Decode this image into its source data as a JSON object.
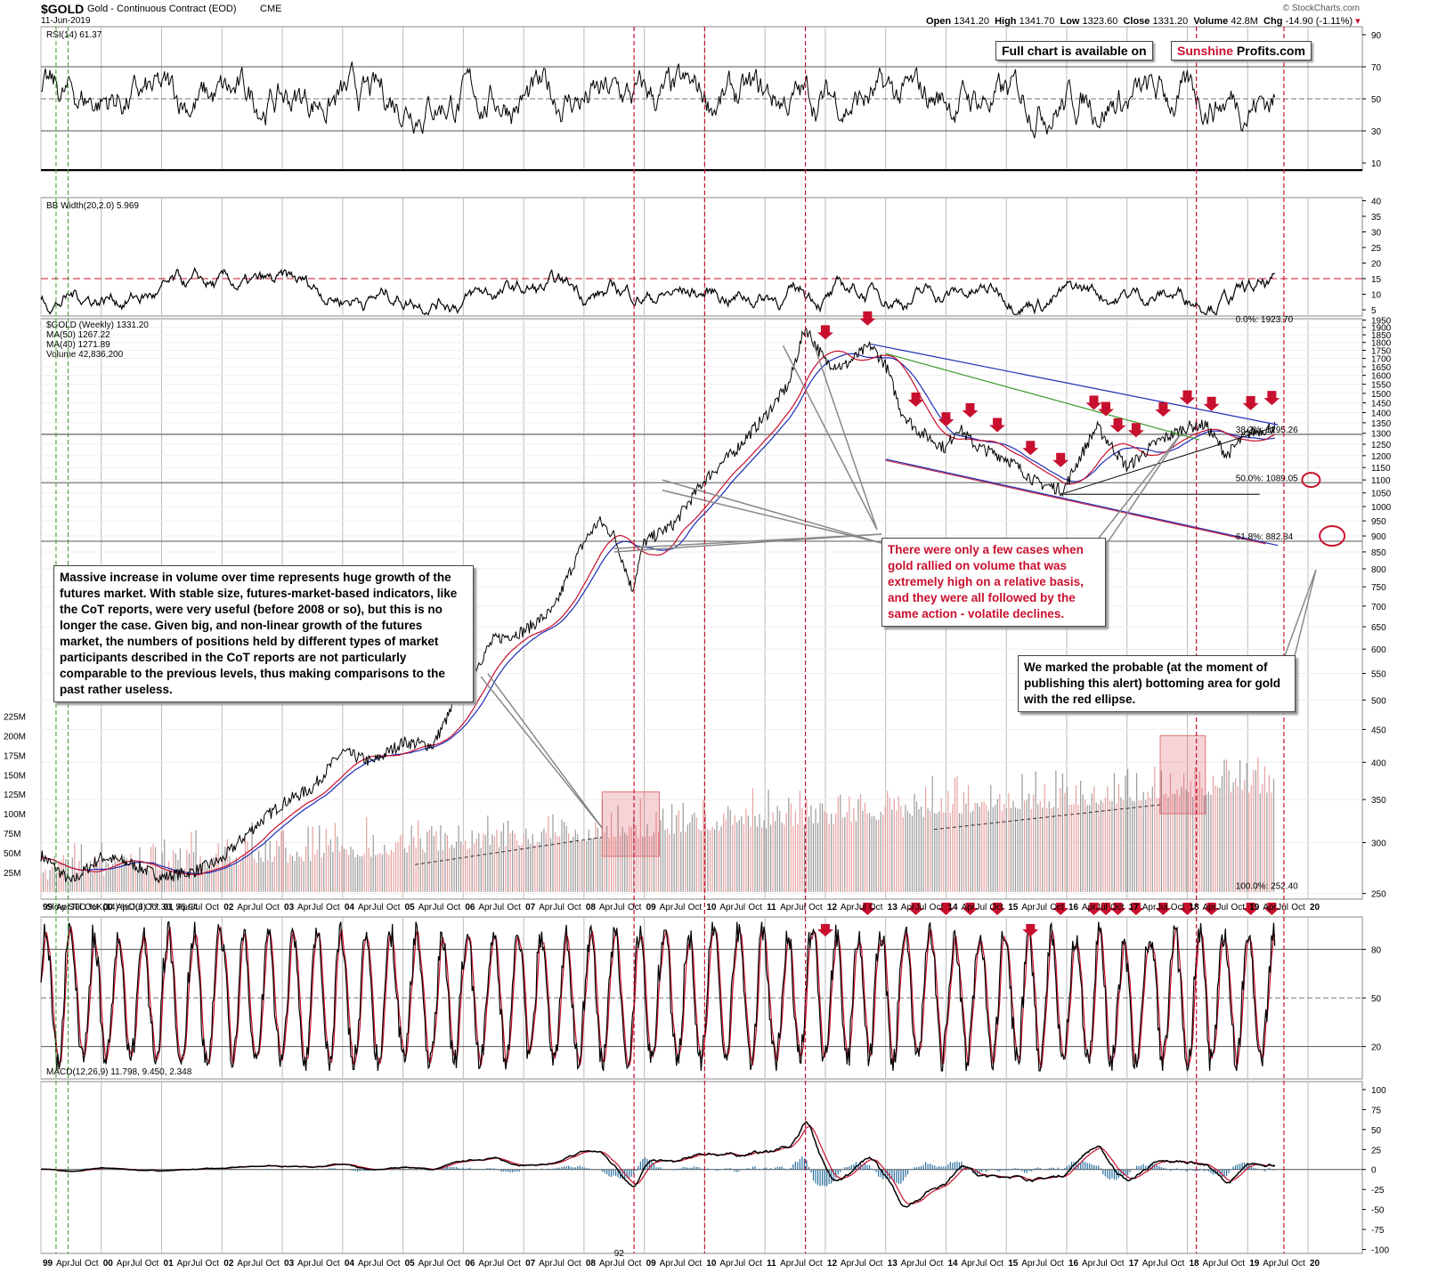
{
  "header": {
    "symbol": "$GOLD",
    "name": "Gold - Continuous Contract (EOD)",
    "exchange": "CME",
    "date": "11-Jun-2019",
    "open_label": "Open",
    "open": "1341.20",
    "high_label": "High",
    "high": "1341.70",
    "low_label": "Low",
    "low": "1323.60",
    "close_label": "Close",
    "close": "1331.20",
    "volume_label": "Volume",
    "volume": "42.8M",
    "chg_label": "Chg",
    "chg": "-14.90 (-1.11%)",
    "watermark": "© StockCharts.com"
  },
  "callouts": {
    "full_chart_text": "Full chart is available on",
    "brand_part1": "Sunshine",
    "brand_part2": "Profits.com",
    "volume_note": "Massive increase in volume over time represents huge growth of the futures market. With stable size, futures-market-based indicators, like the CoT reports, were very useful (before 2008 or so), but this is no longer the case. Given big, and non-linear growth of the futures market, the numbers of positions held by different types of market participants described in the CoT reports are not particularly comparable to the previous levels, thus making comparisons to the past rather useless.",
    "rally_note": "There were only a few cases when gold rallied on volume that was extremely high on a relative basis, and they were all followed by the same action - volatile declines.",
    "ellipse_note": "We marked the probable (at the moment of publishing this alert) bottoming area for gold with the red ellipse."
  },
  "chart_data": [
    {
      "type": "line",
      "panel": "rsi",
      "legend": "RSI(14) 61.37",
      "y_ticks": [
        10,
        30,
        50,
        70,
        90
      ],
      "ylim": [
        5,
        95
      ],
      "last_value": 61.37
    },
    {
      "type": "line",
      "panel": "bb_width",
      "legend": "BB Width(20,2.0) 5.969",
      "y_ticks": [
        5,
        10,
        15,
        20,
        25,
        30,
        35,
        40
      ],
      "ylim": [
        3,
        41
      ],
      "last_value": 5.969
    },
    {
      "type": "line",
      "panel": "price",
      "legend": [
        "$GOLD (Weekly) 1331.20",
        "MA(50) 1267.22",
        "MA(40) 1271.89",
        "Volume 42,836,200"
      ],
      "y_ticks_price": [
        250,
        300,
        350,
        400,
        450,
        500,
        550,
        600,
        650,
        700,
        750,
        800,
        850,
        900,
        950,
        1000,
        1050,
        1100,
        1150,
        1200,
        1250,
        1300,
        1350,
        1400,
        1450,
        1500,
        1550,
        1600,
        1650,
        1700,
        1750,
        1800,
        1850,
        1900,
        1950
      ],
      "y_ticks_volume": [
        "25M",
        "50M",
        "75M",
        "100M",
        "125M",
        "150M",
        "175M",
        "200M",
        "225M"
      ],
      "fib_labels": [
        "0.0%: 1923.70",
        "38.2%: 1295.26",
        "50.0%: 1089.05",
        "61.8%: 882.84",
        "100.0%: 252.40"
      ],
      "x": [
        1999.0,
        1999.5,
        2000.0,
        2000.5,
        2001.0,
        2001.5,
        2002.0,
        2002.5,
        2003.0,
        2003.5,
        2004.0,
        2004.5,
        2005.0,
        2005.5,
        2006.0,
        2006.5,
        2007.0,
        2007.5,
        2008.0,
        2008.25,
        2008.5,
        2008.8,
        2009.0,
        2009.5,
        2010.0,
        2010.5,
        2011.0,
        2011.4,
        2011.67,
        2012.0,
        2012.3,
        2012.75,
        2013.0,
        2013.25,
        2013.5,
        2014.0,
        2014.2,
        2014.5,
        2015.0,
        2015.5,
        2015.95,
        2016.5,
        2017.0,
        2017.5,
        2018.0,
        2018.3,
        2018.65,
        2019.0,
        2019.45
      ],
      "close": [
        287,
        260,
        285,
        278,
        265,
        270,
        282,
        315,
        345,
        365,
        415,
        400,
        430,
        425,
        520,
        620,
        640,
        690,
        880,
        950,
        900,
        740,
        880,
        940,
        1100,
        1220,
        1380,
        1550,
        1900,
        1680,
        1650,
        1780,
        1660,
        1410,
        1320,
        1230,
        1330,
        1240,
        1190,
        1090,
        1060,
        1330,
        1150,
        1260,
        1330,
        1340,
        1200,
        1300,
        1331
      ],
      "ellipse_targets": [
        1100,
        900
      ]
    },
    {
      "type": "line",
      "panel": "slow_sto",
      "legend": "Slow STO %K(14) %D(3) 77.30, 55.94",
      "series": [
        {
          "name": "%K(14)",
          "last_value": 77.3
        },
        {
          "name": "%D(3)",
          "last_value": 55.94
        }
      ],
      "y_ticks": [
        20,
        50,
        80
      ],
      "ylim": [
        0,
        100
      ]
    },
    {
      "type": "line",
      "panel": "macd",
      "legend": "MACD(12,26,9) 11.798, 9.450, 2.348",
      "series": [
        {
          "name": "MACD",
          "last_value": 11.798
        },
        {
          "name": "Signal",
          "last_value": 9.45
        },
        {
          "name": "Histogram",
          "last_value": 2.348
        }
      ],
      "y_ticks": [
        -100,
        -75,
        -50,
        -25,
        0,
        25,
        50,
        75,
        100
      ],
      "ylim": [
        -105,
        110
      ]
    }
  ],
  "x_axis": {
    "year_labels": [
      "99",
      "00",
      "01",
      "02",
      "03",
      "04",
      "05",
      "06",
      "07",
      "08",
      "09",
      "10",
      "11",
      "12",
      "13",
      "14",
      "15",
      "16",
      "17",
      "18",
      "19",
      "20"
    ],
    "sub_labels": [
      "Apr",
      "Jul",
      "Oct"
    ],
    "extra_label": "92"
  },
  "colors": {
    "accent_red": "#c8102e",
    "ma_blue": "#1f2db5",
    "trend_green": "#3c9a2a",
    "macd_hist": "#2a6f9e",
    "volume_gray": "#9a9a9a",
    "volume_pink": "#e8a0a0"
  }
}
